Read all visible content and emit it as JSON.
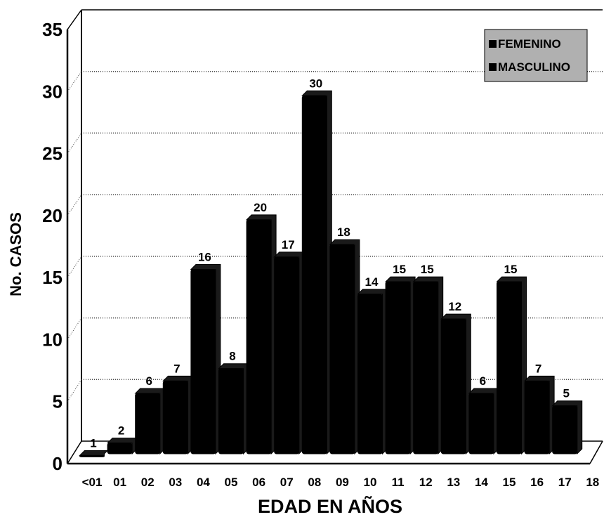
{
  "chart_data": {
    "type": "bar",
    "xlabel": "EDAD EN AÑOS",
    "ylabel": "No. CASOS",
    "ylim": [
      0,
      35
    ],
    "yticks": [
      "0",
      "5",
      "10",
      "15",
      "20",
      "25",
      "30",
      "35"
    ],
    "x_tick_labels": [
      "<01",
      "01",
      "02",
      "03",
      "04",
      "05",
      "06",
      "07",
      "08",
      "09",
      "10",
      "11",
      "12",
      "13",
      "14",
      "15",
      "16",
      "17",
      "18"
    ],
    "categories": [
      "<01",
      "01",
      "02",
      "03",
      "04",
      "05",
      "06",
      "07",
      "08",
      "09",
      "10",
      "11",
      "12",
      "13",
      "14",
      "15",
      "16",
      "17"
    ],
    "values": [
      1,
      2,
      6,
      7,
      16,
      8,
      20,
      17,
      30,
      18,
      14,
      15,
      15,
      12,
      6,
      15,
      7,
      5
    ],
    "legend": [
      "FEMENINO",
      "MASCULINO"
    ],
    "legend_position": "top-right",
    "grid": true,
    "bar_color": "#000000"
  }
}
